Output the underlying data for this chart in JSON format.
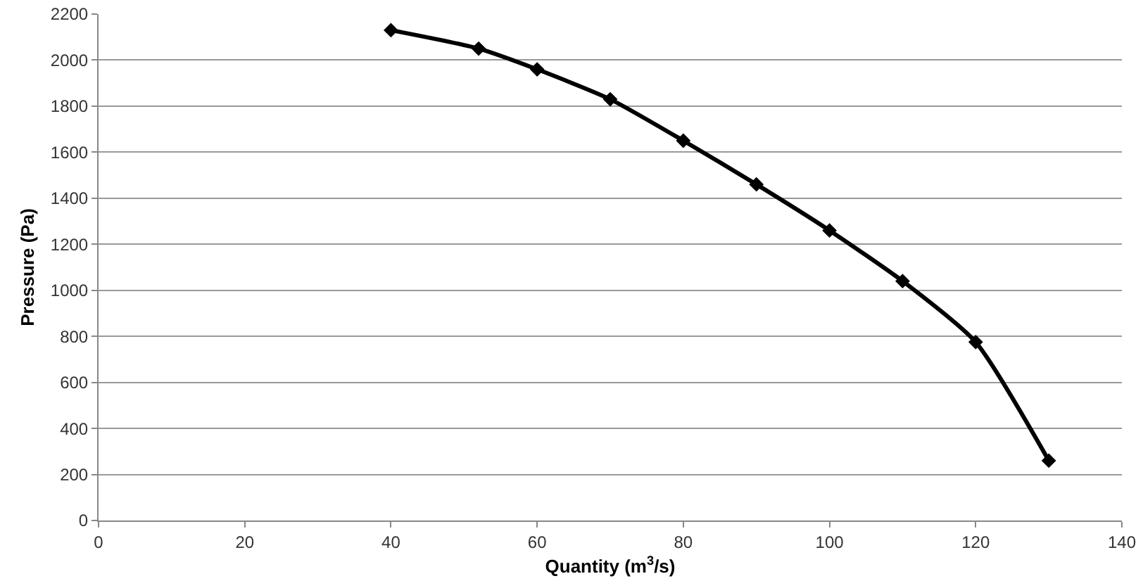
{
  "chart_data": {
    "type": "line",
    "xlabel": "Quantity (m$^{3}$/s)",
    "ylabel": "Pressure (Pa)",
    "x": [
      40,
      52,
      60,
      70,
      80,
      90,
      100,
      110,
      120,
      130
    ],
    "series": [
      {
        "color": "#000000",
        "values": [
          2130,
          2050,
          1960,
          1830,
          1650,
          1460,
          1260,
          1040,
          775,
          260
        ]
      }
    ],
    "xlim": [
      0,
      140
    ],
    "xticks": [
      0,
      20,
      40,
      60,
      80,
      100,
      120,
      140
    ],
    "ylim": [
      0,
      2200
    ],
    "yticks": [
      0,
      200,
      400,
      600,
      800,
      1000,
      1200,
      1400,
      1600,
      1800,
      2000,
      2200
    ],
    "grid": "y",
    "marker": "diamond",
    "line_style": "solid",
    "legend": false
  }
}
